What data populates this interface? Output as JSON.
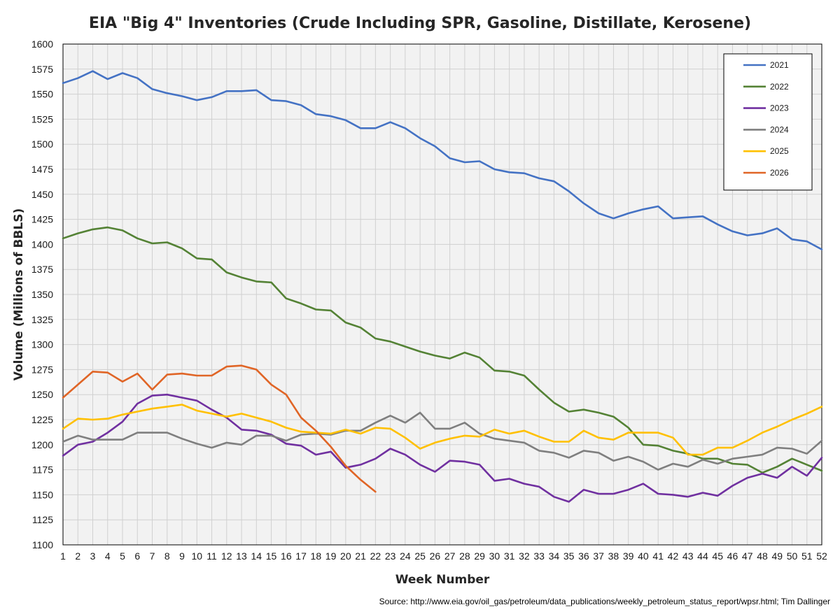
{
  "chart_data": {
    "type": "line",
    "title": "EIA \"Big 4\" Inventories (Crude Including SPR, Gasoline, Distillate, Kerosene)",
    "xlabel": "Week Number",
    "ylabel": "Volume (Millions of BBLS)",
    "source": "Source: http://www.eia.gov/oil_gas/petroleum/data_publications/weekly_petroleum_status_report/wpsr.html; Tim Dallinger",
    "xlim": [
      1,
      52
    ],
    "ylim": [
      1100,
      1600
    ],
    "ytick_step": 25,
    "grid": true,
    "legend_position": "top-right",
    "x": [
      1,
      2,
      3,
      4,
      5,
      6,
      7,
      8,
      9,
      10,
      11,
      12,
      13,
      14,
      15,
      16,
      17,
      18,
      19,
      20,
      21,
      22,
      23,
      24,
      25,
      26,
      27,
      28,
      29,
      30,
      31,
      32,
      33,
      34,
      35,
      36,
      37,
      38,
      39,
      40,
      41,
      42,
      43,
      44,
      45,
      46,
      47,
      48,
      49,
      50,
      51,
      52
    ],
    "series": [
      {
        "name": "2021",
        "color": "#4472C4",
        "values": [
          1561,
          1566,
          1573,
          1565,
          1571,
          1566,
          1555,
          1551,
          1548,
          1544,
          1547,
          1553,
          1553,
          1554,
          1544,
          1543,
          1539,
          1530,
          1528,
          1524,
          1516,
          1516,
          1522,
          1516,
          1506,
          1498,
          1486,
          1482,
          1483,
          1475,
          1472,
          1471,
          1466,
          1463,
          1453,
          1441,
          1431,
          1426,
          1431,
          1435,
          1438,
          1426,
          1427,
          1428,
          1420,
          1413,
          1409,
          1411,
          1416,
          1405,
          1403,
          1395
        ]
      },
      {
        "name": "2022",
        "color": "#548235",
        "values": [
          1406,
          1411,
          1415,
          1417,
          1414,
          1406,
          1401,
          1402,
          1396,
          1386,
          1385,
          1372,
          1367,
          1363,
          1362,
          1346,
          1341,
          1335,
          1334,
          1322,
          1317,
          1306,
          1303,
          1298,
          1293,
          1289,
          1286,
          1292,
          1287,
          1274,
          1273,
          1269,
          1255,
          1242,
          1233,
          1235,
          1232,
          1228,
          1217,
          1200,
          1199,
          1194,
          1191,
          1186,
          1186,
          1181,
          1180,
          1172,
          1178,
          1186,
          1180,
          1174
        ]
      },
      {
        "name": "2023",
        "color": "#7030A0",
        "values": [
          1189,
          1200,
          1203,
          1212,
          1223,
          1241,
          1249,
          1250,
          1247,
          1244,
          1235,
          1227,
          1215,
          1214,
          1210,
          1201,
          1199,
          1190,
          1193,
          1177,
          1180,
          1186,
          1196,
          1190,
          1180,
          1173,
          1184,
          1183,
          1180,
          1164,
          1166,
          1161,
          1158,
          1148,
          1143,
          1155,
          1151,
          1151,
          1155,
          1161,
          1151,
          1150,
          1148,
          1152,
          1149,
          1159,
          1167,
          1171,
          1167,
          1178,
          1169,
          1187
        ]
      },
      {
        "name": "2024",
        "color": "#7F7F7F",
        "values": [
          1203,
          1209,
          1205,
          1205,
          1205,
          1212,
          1212,
          1212,
          1206,
          1201,
          1197,
          1202,
          1200,
          1209,
          1209,
          1204,
          1210,
          1211,
          1210,
          1214,
          1214,
          1222,
          1229,
          1222,
          1232,
          1216,
          1216,
          1222,
          1211,
          1206,
          1204,
          1202,
          1194,
          1192,
          1187,
          1194,
          1192,
          1184,
          1188,
          1183,
          1175,
          1181,
          1178,
          1185,
          1181,
          1186,
          1188,
          1190,
          1197,
          1196,
          1191,
          1204
        ]
      },
      {
        "name": "2025",
        "color": "#FFC000",
        "values": [
          1216,
          1226,
          1225,
          1226,
          1230,
          1233,
          1236,
          1238,
          1240,
          1234,
          1231,
          1228,
          1231,
          1227,
          1223,
          1217,
          1213,
          1212,
          1211,
          1215,
          1211,
          1217,
          1216,
          1207,
          1196,
          1202,
          1206,
          1209,
          1208,
          1215,
          1211,
          1214,
          1208,
          1203,
          1203,
          1214,
          1207,
          1205,
          1212,
          1212,
          1212,
          1207,
          1190,
          1190,
          1197,
          1197,
          1204,
          1212,
          1218,
          1225,
          1231,
          1238
        ]
      },
      {
        "name": "2026",
        "color": "#E06526",
        "values": [
          1247,
          1260,
          1273,
          1272,
          1263,
          1271,
          1255,
          1270,
          1271,
          1269,
          1269,
          1278,
          1279,
          1275,
          1260,
          1250,
          1227,
          1214,
          1198,
          1179,
          1165,
          1153,
          null,
          null,
          null,
          null,
          null,
          null,
          null,
          null,
          null,
          null,
          null,
          null,
          null,
          null,
          null,
          null,
          null,
          null,
          null,
          null,
          null,
          null,
          null,
          null,
          null,
          null,
          null,
          null,
          null,
          null
        ]
      }
    ]
  }
}
